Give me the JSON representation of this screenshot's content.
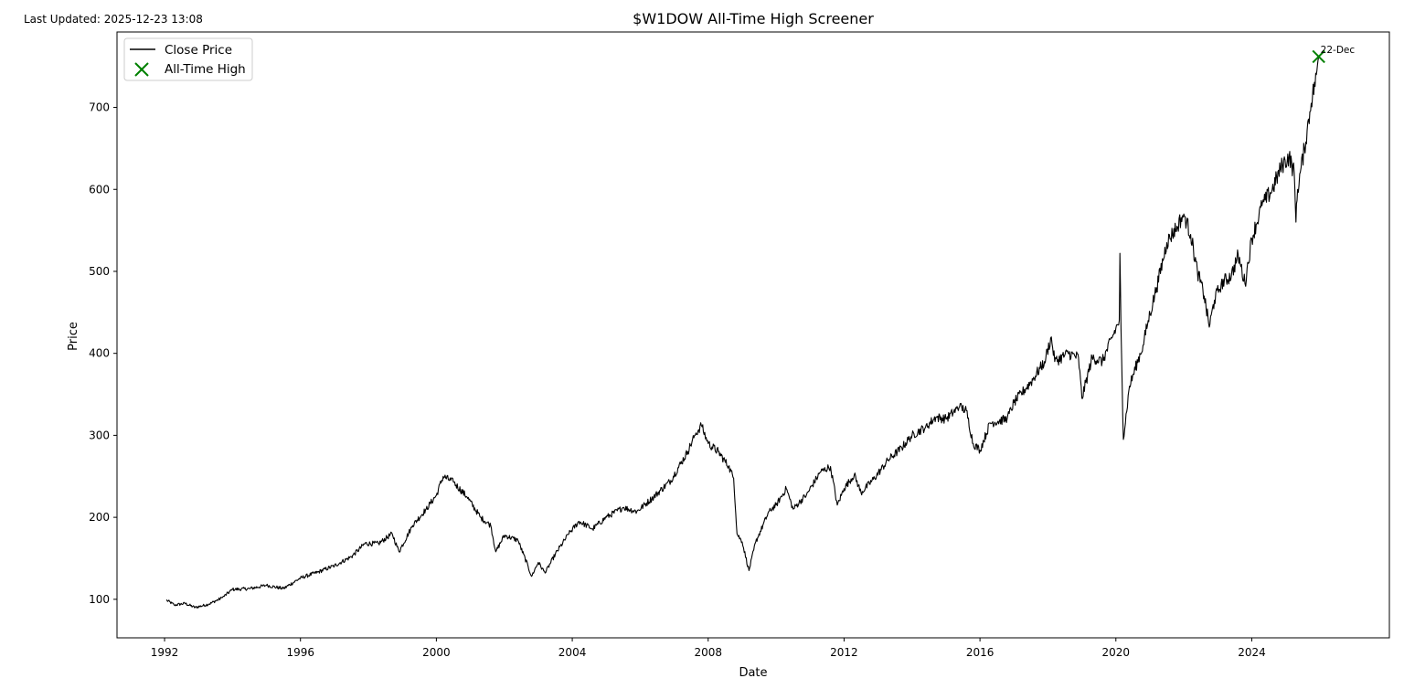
{
  "header": {
    "last_updated": "Last Updated: 2025-12-23 13:08"
  },
  "chart_data": {
    "type": "line",
    "title": "$W1DOW All-Time High Screener",
    "xlabel": "Date",
    "ylabel": "Price",
    "xlim": [
      1990.6,
      2028.05
    ],
    "ylim": [
      53,
      792
    ],
    "x_ticks": [
      1992,
      1996,
      2000,
      2004,
      2008,
      2012,
      2016,
      2020,
      2024
    ],
    "x_tick_labels": [
      "1992",
      "1996",
      "2000",
      "2004",
      "2008",
      "2012",
      "2016",
      "2020",
      "2024"
    ],
    "y_ticks": [
      100,
      200,
      300,
      400,
      500,
      600,
      700
    ],
    "y_tick_labels": [
      "100",
      "200",
      "300",
      "400",
      "500",
      "600",
      "700"
    ],
    "grid": false,
    "legend_position": "top-left",
    "legend": [
      "Close Price",
      "All-Time High"
    ],
    "series": [
      {
        "name": "Close Price",
        "color": "#000000",
        "points": [
          [
            1992.05,
            99
          ],
          [
            1992.3,
            93
          ],
          [
            1992.6,
            95
          ],
          [
            1992.9,
            90
          ],
          [
            1993.3,
            94
          ],
          [
            1993.7,
            102
          ],
          [
            1994.0,
            112
          ],
          [
            1994.5,
            113
          ],
          [
            1995.0,
            117
          ],
          [
            1995.5,
            113
          ],
          [
            1996.0,
            126
          ],
          [
            1996.5,
            133
          ],
          [
            1997.0,
            141
          ],
          [
            1997.5,
            152
          ],
          [
            1997.9,
            168
          ],
          [
            1998.3,
            168
          ],
          [
            1998.7,
            180
          ],
          [
            1998.9,
            158
          ],
          [
            1999.3,
            190
          ],
          [
            1999.7,
            210
          ],
          [
            2000.0,
            227
          ],
          [
            2000.2,
            250
          ],
          [
            2000.5,
            243
          ],
          [
            2000.9,
            225
          ],
          [
            2001.3,
            200
          ],
          [
            2001.6,
            190
          ],
          [
            2001.75,
            158
          ],
          [
            2002.0,
            178
          ],
          [
            2002.4,
            172
          ],
          [
            2002.7,
            140
          ],
          [
            2002.8,
            128
          ],
          [
            2003.0,
            145
          ],
          [
            2003.2,
            132
          ],
          [
            2003.5,
            155
          ],
          [
            2003.9,
            180
          ],
          [
            2004.2,
            195
          ],
          [
            2004.6,
            186
          ],
          [
            2005.0,
            200
          ],
          [
            2005.5,
            212
          ],
          [
            2005.9,
            207
          ],
          [
            2006.4,
            225
          ],
          [
            2006.9,
            245
          ],
          [
            2007.4,
            280
          ],
          [
            2007.6,
            300
          ],
          [
            2007.8,
            312
          ],
          [
            2008.0,
            290
          ],
          [
            2008.3,
            280
          ],
          [
            2008.6,
            262
          ],
          [
            2008.75,
            248
          ],
          [
            2008.85,
            180
          ],
          [
            2009.0,
            170
          ],
          [
            2009.2,
            135
          ],
          [
            2009.4,
            170
          ],
          [
            2009.8,
            208
          ],
          [
            2010.0,
            215
          ],
          [
            2010.3,
            235
          ],
          [
            2010.5,
            210
          ],
          [
            2010.9,
            228
          ],
          [
            2011.3,
            255
          ],
          [
            2011.6,
            262
          ],
          [
            2011.8,
            215
          ],
          [
            2012.0,
            235
          ],
          [
            2012.3,
            252
          ],
          [
            2012.5,
            230
          ],
          [
            2012.9,
            248
          ],
          [
            2013.3,
            270
          ],
          [
            2013.7,
            285
          ],
          [
            2014.0,
            300
          ],
          [
            2014.4,
            310
          ],
          [
            2014.7,
            322
          ],
          [
            2015.0,
            320
          ],
          [
            2015.4,
            335
          ],
          [
            2015.6,
            330
          ],
          [
            2015.8,
            290
          ],
          [
            2016.0,
            282
          ],
          [
            2016.3,
            315
          ],
          [
            2016.8,
            320
          ],
          [
            2017.0,
            340
          ],
          [
            2017.5,
            365
          ],
          [
            2017.9,
            390
          ],
          [
            2018.1,
            420
          ],
          [
            2018.2,
            390
          ],
          [
            2018.6,
            400
          ],
          [
            2018.9,
            395
          ],
          [
            2019.0,
            345
          ],
          [
            2019.3,
            395
          ],
          [
            2019.6,
            390
          ],
          [
            2019.9,
            420
          ],
          [
            2020.1,
            440
          ],
          [
            2020.12,
            522
          ],
          [
            2020.15,
            430
          ],
          [
            2020.22,
            295
          ],
          [
            2020.4,
            360
          ],
          [
            2020.8,
            410
          ],
          [
            2020.95,
            440
          ],
          [
            2021.2,
            480
          ],
          [
            2021.5,
            535
          ],
          [
            2021.8,
            555
          ],
          [
            2022.0,
            570
          ],
          [
            2022.2,
            545
          ],
          [
            2022.4,
            500
          ],
          [
            2022.6,
            470
          ],
          [
            2022.75,
            432
          ],
          [
            2022.9,
            465
          ],
          [
            2023.1,
            485
          ],
          [
            2023.4,
            495
          ],
          [
            2023.6,
            520
          ],
          [
            2023.8,
            485
          ],
          [
            2024.0,
            540
          ],
          [
            2024.3,
            580
          ],
          [
            2024.6,
            600
          ],
          [
            2024.9,
            630
          ],
          [
            2025.1,
            640
          ],
          [
            2025.25,
            620
          ],
          [
            2025.3,
            560
          ],
          [
            2025.35,
            600
          ],
          [
            2025.55,
            650
          ],
          [
            2025.75,
            705
          ],
          [
            2025.9,
            740
          ],
          [
            2025.97,
            762
          ]
        ]
      }
    ],
    "markers": [
      {
        "name": "All-Time High",
        "x": 2025.97,
        "y": 762,
        "color": "#008000",
        "symbol": "x",
        "label": "22-Dec"
      }
    ]
  }
}
